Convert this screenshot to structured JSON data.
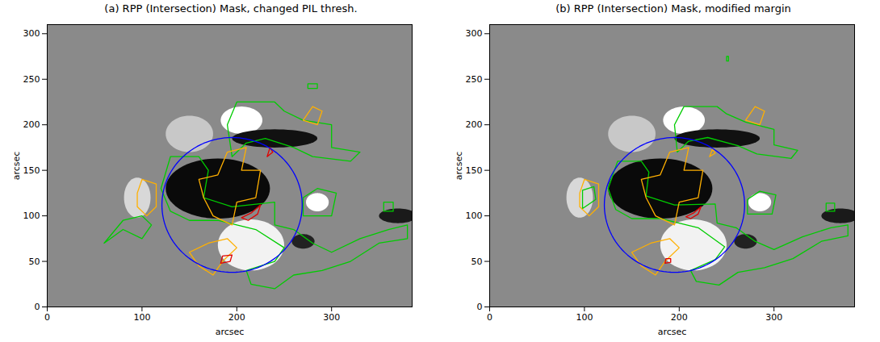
{
  "chart_data": [
    {
      "type": "contour",
      "title": "(a) RPP (Intersection) Mask, changed PIL thresh.",
      "x_label": "arcsec",
      "y_label": "arcsec",
      "xlim": [
        0,
        385
      ],
      "ylim": [
        0,
        310
      ],
      "xticks": [
        0,
        100,
        200,
        300
      ],
      "yticks": [
        0,
        50,
        100,
        150,
        200,
        250,
        300
      ],
      "background": "#8a8a8a",
      "features": [
        {
          "x": 205,
          "y": 205,
          "rx": 22,
          "ry": 15,
          "color": "#ffffff"
        },
        {
          "x": 215,
          "y": 68,
          "rx": 35,
          "ry": 28,
          "color": "#f2f2f2"
        },
        {
          "x": 285,
          "y": 115,
          "rx": 12,
          "ry": 10,
          "color": "#ffffff"
        },
        {
          "x": 95,
          "y": 120,
          "rx": 14,
          "ry": 22,
          "color": "#d8d8d8"
        },
        {
          "x": 150,
          "y": 190,
          "rx": 25,
          "ry": 20,
          "color": "#c8c8c8"
        },
        {
          "x": 180,
          "y": 130,
          "rx": 55,
          "ry": 33,
          "color": "#0a0a0a"
        },
        {
          "x": 240,
          "y": 185,
          "rx": 45,
          "ry": 10,
          "color": "#111111"
        },
        {
          "x": 370,
          "y": 100,
          "rx": 20,
          "ry": 8,
          "color": "#1a1a1a"
        },
        {
          "x": 270,
          "y": 72,
          "rx": 12,
          "ry": 8,
          "color": "#222222"
        }
      ],
      "circle": {
        "x": 195,
        "y": 112,
        "r": 74,
        "color": "#0000ff"
      },
      "series": [
        {
          "color": "#00cc00",
          "polygons": [
            [
              [
                195,
                165
              ],
              [
                190,
                200
              ],
              [
                200,
                225
              ],
              [
                240,
                225
              ],
              [
                250,
                215
              ],
              [
                270,
                205
              ],
              [
                300,
                200
              ],
              [
                300,
                175
              ],
              [
                330,
                170
              ],
              [
                320,
                160
              ],
              [
                280,
                165
              ],
              [
                260,
                175
              ],
              [
                230,
                185
              ],
              [
                210,
                180
              ]
            ],
            [
              [
                130,
                165
              ],
              [
                160,
                165
              ],
              [
                170,
                150
              ],
              [
                165,
                120
              ],
              [
                195,
                110
              ],
              [
                240,
                115
              ],
              [
                240,
                90
              ],
              [
                260,
                85
              ],
              [
                280,
                70
              ],
              [
                300,
                60
              ],
              [
                330,
                75
              ],
              [
                360,
                85
              ],
              [
                380,
                90
              ],
              [
                380,
                75
              ],
              [
                350,
                70
              ],
              [
                320,
                50
              ],
              [
                290,
                40
              ],
              [
                260,
                35
              ],
              [
                240,
                20
              ],
              [
                215,
                25
              ],
              [
                210,
                40
              ],
              [
                240,
                50
              ],
              [
                250,
                65
              ],
              [
                220,
                85
              ],
              [
                180,
                95
              ],
              [
                150,
                95
              ],
              [
                130,
                105
              ],
              [
                120,
                130
              ]
            ],
            [
              [
                270,
                100
              ],
              [
                300,
                100
              ],
              [
                305,
                125
              ],
              [
                285,
                130
              ],
              [
                270,
                120
              ]
            ],
            [
              [
                60,
                70
              ],
              [
                80,
                85
              ],
              [
                100,
                75
              ],
              [
                110,
                90
              ],
              [
                100,
                100
              ],
              [
                80,
                95
              ]
            ],
            [
              [
                355,
                105
              ],
              [
                365,
                105
              ],
              [
                365,
                115
              ],
              [
                355,
                115
              ]
            ],
            [
              [
                275,
                240
              ],
              [
                285,
                240
              ],
              [
                285,
                245
              ],
              [
                275,
                245
              ]
            ]
          ]
        },
        {
          "color": "#ffb000",
          "polygons": [
            [
              [
                160,
                140
              ],
              [
                180,
                145
              ],
              [
                190,
                170
              ],
              [
                210,
                175
              ],
              [
                205,
                150
              ],
              [
                225,
                150
              ],
              [
                220,
                120
              ],
              [
                200,
                115
              ],
              [
                195,
                90
              ],
              [
                175,
                100
              ],
              [
                165,
                120
              ]
            ],
            [
              [
                150,
                60
              ],
              [
                170,
                70
              ],
              [
                190,
                75
              ],
              [
                200,
                65
              ],
              [
                185,
                50
              ],
              [
                175,
                35
              ],
              [
                160,
                45
              ]
            ],
            [
              [
                95,
                125
              ],
              [
                100,
                140
              ],
              [
                115,
                135
              ],
              [
                115,
                110
              ],
              [
                105,
                100
              ],
              [
                95,
                110
              ]
            ],
            [
              [
                270,
                205
              ],
              [
                280,
                220
              ],
              [
                290,
                215
              ],
              [
                285,
                200
              ]
            ]
          ]
        },
        {
          "color": "#e00000",
          "polygons": [
            [
              [
                205,
                98
              ],
              [
                215,
                103
              ],
              [
                225,
                112
              ],
              [
                222,
                102
              ],
              [
                212,
                95
              ]
            ],
            [
              [
                183,
                48
              ],
              [
                193,
                50
              ],
              [
                195,
                57
              ],
              [
                185,
                56
              ]
            ],
            [
              [
                232,
                165
              ],
              [
                238,
                170
              ],
              [
                235,
                175
              ]
            ]
          ]
        }
      ]
    },
    {
      "type": "contour",
      "title": "(b) RPP (Intersection) Mask, modified margin",
      "x_label": "arcsec",
      "y_label": "arcsec",
      "xlim": [
        0,
        385
      ],
      "ylim": [
        0,
        310
      ],
      "xticks": [
        0,
        100,
        200,
        300
      ],
      "yticks": [
        0,
        50,
        100,
        150,
        200,
        250,
        300
      ],
      "background": "#8a8a8a",
      "features": [
        {
          "x": 205,
          "y": 205,
          "rx": 22,
          "ry": 15,
          "color": "#ffffff"
        },
        {
          "x": 215,
          "y": 68,
          "rx": 35,
          "ry": 28,
          "color": "#f2f2f2"
        },
        {
          "x": 285,
          "y": 115,
          "rx": 12,
          "ry": 10,
          "color": "#ffffff"
        },
        {
          "x": 95,
          "y": 120,
          "rx": 14,
          "ry": 22,
          "color": "#d8d8d8"
        },
        {
          "x": 150,
          "y": 190,
          "rx": 25,
          "ry": 20,
          "color": "#c8c8c8"
        },
        {
          "x": 180,
          "y": 130,
          "rx": 55,
          "ry": 33,
          "color": "#0a0a0a"
        },
        {
          "x": 240,
          "y": 185,
          "rx": 45,
          "ry": 10,
          "color": "#111111"
        },
        {
          "x": 370,
          "y": 100,
          "rx": 20,
          "ry": 8,
          "color": "#1a1a1a"
        },
        {
          "x": 270,
          "y": 72,
          "rx": 12,
          "ry": 8,
          "color": "#222222"
        }
      ],
      "circle": {
        "x": 195,
        "y": 112,
        "r": 74,
        "color": "#0000ff"
      },
      "series": [
        {
          "color": "#00cc00",
          "polygons": [
            [
              [
                198,
                170
              ],
              [
                195,
                200
              ],
              [
                205,
                220
              ],
              [
                240,
                220
              ],
              [
                250,
                212
              ],
              [
                270,
                203
              ],
              [
                300,
                195
              ],
              [
                300,
                178
              ],
              [
                325,
                172
              ],
              [
                318,
                163
              ],
              [
                282,
                168
              ],
              [
                262,
                177
              ],
              [
                230,
                186
              ],
              [
                210,
                182
              ]
            ],
            [
              [
                135,
                160
              ],
              [
                160,
                160
              ],
              [
                168,
                148
              ],
              [
                165,
                122
              ],
              [
                195,
                112
              ],
              [
                238,
                113
              ],
              [
                240,
                92
              ],
              [
                260,
                87
              ],
              [
                280,
                72
              ],
              [
                300,
                63
              ],
              [
                330,
                77
              ],
              [
                360,
                87
              ],
              [
                378,
                90
              ],
              [
                378,
                78
              ],
              [
                350,
                72
              ],
              [
                320,
                53
              ],
              [
                290,
                43
              ],
              [
                262,
                38
              ],
              [
                242,
                24
              ],
              [
                218,
                28
              ],
              [
                212,
                40
              ],
              [
                238,
                52
              ],
              [
                248,
                66
              ],
              [
                220,
                87
              ],
              [
                180,
                97
              ],
              [
                150,
                97
              ],
              [
                133,
                107
              ],
              [
                125,
                130
              ]
            ],
            [
              [
                272,
                102
              ],
              [
                298,
                102
              ],
              [
                302,
                123
              ],
              [
                285,
                127
              ],
              [
                272,
                118
              ]
            ],
            [
              [
                98,
                108
              ],
              [
                112,
                118
              ],
              [
                110,
                132
              ],
              [
                98,
                128
              ]
            ],
            [
              [
                355,
                105
              ],
              [
                364,
                105
              ],
              [
                364,
                114
              ],
              [
                355,
                114
              ]
            ],
            [
              [
                250,
                270
              ],
              [
                252,
                270
              ],
              [
                252,
                275
              ],
              [
                250,
                275
              ]
            ]
          ]
        },
        {
          "color": "#ffb000",
          "polygons": [
            [
              [
                160,
                140
              ],
              [
                180,
                145
              ],
              [
                190,
                170
              ],
              [
                210,
                175
              ],
              [
                205,
                150
              ],
              [
                225,
                150
              ],
              [
                220,
                120
              ],
              [
                200,
                115
              ],
              [
                195,
                90
              ],
              [
                175,
                100
              ],
              [
                165,
                120
              ]
            ],
            [
              [
                150,
                60
              ],
              [
                170,
                70
              ],
              [
                190,
                75
              ],
              [
                200,
                65
              ],
              [
                185,
                50
              ],
              [
                175,
                35
              ],
              [
                160,
                45
              ]
            ],
            [
              [
                95,
                125
              ],
              [
                100,
                140
              ],
              [
                115,
                135
              ],
              [
                115,
                110
              ],
              [
                105,
                100
              ],
              [
                95,
                110
              ]
            ],
            [
              [
                270,
                205
              ],
              [
                280,
                220
              ],
              [
                290,
                215
              ],
              [
                285,
                200
              ]
            ],
            [
              [
                232,
                165
              ],
              [
                238,
                169
              ],
              [
                235,
                173
              ]
            ]
          ]
        },
        {
          "color": "#e00000",
          "polygons": [
            [
              [
                207,
                99
              ],
              [
                215,
                103
              ],
              [
                223,
                110
              ],
              [
                220,
                102
              ],
              [
                212,
                97
              ]
            ],
            [
              [
                185,
                48
              ],
              [
                191,
                49
              ],
              [
                191,
                53
              ],
              [
                186,
                53
              ]
            ]
          ]
        }
      ]
    }
  ]
}
